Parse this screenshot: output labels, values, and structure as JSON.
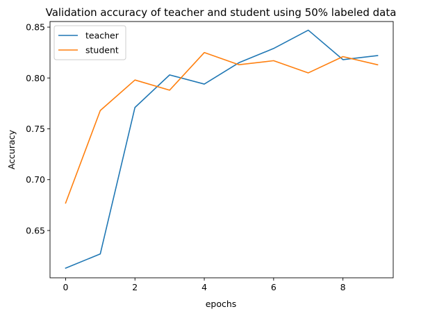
{
  "chart_data": {
    "type": "line",
    "title": "Validation accuracy of teacher and student using 50% labeled data",
    "xlabel": "epochs",
    "ylabel": "Accuracy",
    "xlim": [
      -0.45,
      9.45
    ],
    "ylim": [
      0.6035,
      0.8555
    ],
    "xticks": [
      0,
      2,
      4,
      6,
      8
    ],
    "xtick_labels": [
      "0",
      "2",
      "4",
      "6",
      "8"
    ],
    "yticks": [
      0.65,
      0.7,
      0.75,
      0.8,
      0.85
    ],
    "ytick_labels": [
      "0.65",
      "0.70",
      "0.75",
      "0.80",
      "0.85"
    ],
    "grid": false,
    "legend_placement": "top-left",
    "x": [
      0,
      1,
      2,
      3,
      4,
      5,
      6,
      7,
      8,
      9
    ],
    "series": [
      {
        "name": "teacher",
        "color": "#1f77b4",
        "values": [
          0.613,
          0.627,
          0.771,
          0.803,
          0.794,
          0.815,
          0.829,
          0.847,
          0.818,
          0.822
        ]
      },
      {
        "name": "student",
        "color": "#ff7f0e",
        "values": [
          0.677,
          0.768,
          0.798,
          0.788,
          0.825,
          0.813,
          0.817,
          0.805,
          0.821,
          0.813
        ]
      }
    ]
  }
}
